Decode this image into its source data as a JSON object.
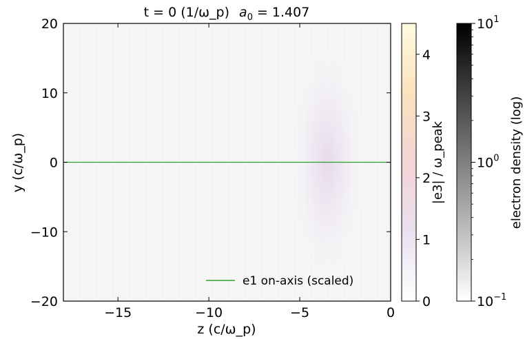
{
  "chart_data": {
    "type": "heatmap",
    "title_prefix": "t = 0 (1/ω_p)",
    "title_a_symbol": "a",
    "title_a_sub": "0",
    "title_a_value": "= 1.407",
    "xlabel": "z (c/ω_p)",
    "ylabel": "y (c/ω_p)",
    "xlim": [
      -18,
      0
    ],
    "ylim": [
      -20,
      20
    ],
    "xticks": [
      -15,
      -10,
      -5,
      0
    ],
    "xtick_labels": [
      "−15",
      "−10",
      "−5",
      "0"
    ],
    "yticks": [
      -20,
      -10,
      0,
      10,
      20
    ],
    "ytick_labels": [
      "−20",
      "−10",
      "0",
      "10",
      "20"
    ],
    "pulse": {
      "center_z": -3.5,
      "center_y": 0,
      "half_width_z": 2.0,
      "half_width_y": 17,
      "peak_value": 0.5
    },
    "series": [
      {
        "name": "e1 on-axis (scaled)",
        "color": "#2ca02c",
        "x": [
          -18,
          0
        ],
        "y": [
          0,
          0
        ]
      }
    ],
    "legend_location": "lower-right",
    "colorbar_field": {
      "label": "|e3| / ω_peak",
      "range": [
        0,
        4.5
      ],
      "ticks": [
        0,
        1,
        2,
        3,
        4
      ],
      "tick_labels": [
        "0",
        "1",
        "2",
        "3",
        "4"
      ],
      "colors": [
        "#ffffff",
        "#e9e0ef",
        "#f4d4d6",
        "#fbe2bd",
        "#fefbe0"
      ]
    },
    "colorbar_density": {
      "label": "electron density (log)",
      "scale": "log",
      "range": [
        0.1,
        10
      ],
      "major_ticks": [
        0.1,
        1,
        10
      ],
      "tick_base": "10",
      "tick_exponents": [
        "−1",
        "0",
        "1"
      ],
      "colors": [
        "#ffffff",
        "#000000"
      ]
    }
  }
}
